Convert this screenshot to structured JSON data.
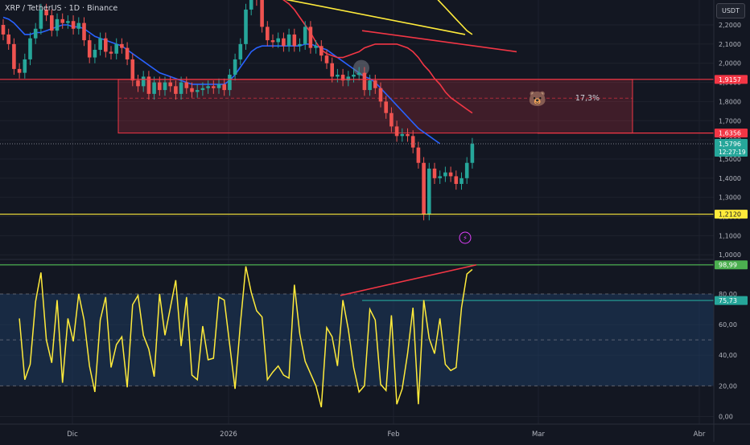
{
  "header": {
    "symbol_title": "XRP / TetherUS · 1D · Binance",
    "currency": "USDT"
  },
  "price_axis": {
    "ticks": [
      "2,2000",
      "2,1000",
      "2,0000",
      "1,9000",
      "1,8000",
      "1,7000",
      "1,6000",
      "1,5000",
      "1,4000",
      "1,3000",
      "1,2000",
      "1,1000",
      "1,0000"
    ],
    "tick_values": [
      2.2,
      2.1,
      2.0,
      1.9,
      1.8,
      1.7,
      1.6,
      1.5,
      1.4,
      1.3,
      1.2,
      1.1,
      1.0
    ]
  },
  "time_axis": {
    "labels": [
      "Dic",
      "2026",
      "Feb",
      "Mar",
      "Abr"
    ]
  },
  "price_labels": {
    "resistance": "1,9157",
    "zone_low": "1,6356",
    "last_price": "1,5796",
    "countdown": "12:27:19",
    "support": "1,2120"
  },
  "colors": {
    "background": "#131722",
    "candle_up": "#26a69a",
    "candle_down": "#ef5350",
    "ma_blue": "#2962ff",
    "ma_red": "#f23645",
    "ma_yellow": "#ffeb3b",
    "zone_fill": "#f2364533",
    "support_line": "#ffeb3b",
    "oscillator_line": "#ffeb3b",
    "oscillator_band": "#1e3a5f"
  },
  "annotations": {
    "zone_percent": "17,3%",
    "bear_emoji": "🐻",
    "flash_icon": "⚡"
  },
  "oscillator": {
    "ticks": [
      "100,00",
      "80,00",
      "60,00",
      "40,00",
      "20,00",
      "0,00"
    ],
    "tick_values": [
      100,
      80,
      60,
      40,
      20,
      0
    ],
    "level_high_label": "98,99",
    "level_low_label": "75,73",
    "level_high": 98.99,
    "level_low": 75.73
  },
  "chart_data": [
    {
      "type": "candlestick",
      "title": "",
      "xlabel": "",
      "ylabel": "",
      "x_ticks": [
        "Dic",
        "2026",
        "Feb",
        "Mar",
        "Abr"
      ],
      "ylim": [
        0.98,
        2.33
      ],
      "horizontal_levels": [
        1.9157,
        1.6356,
        1.212
      ],
      "zone": {
        "high": 1.9157,
        "low": 1.6356
      },
      "close": [
        2.15,
        2.1,
        1.97,
        1.95,
        2.02,
        2.13,
        2.18,
        2.28,
        2.25,
        2.17,
        2.23,
        2.21,
        2.22,
        2.18,
        2.21,
        2.12,
        2.03,
        2.07,
        2.13,
        2.06,
        2.05,
        2.1,
        2.08,
        2.02,
        1.91,
        1.88,
        1.93,
        1.84,
        1.9,
        1.86,
        1.9,
        1.88,
        1.84,
        1.9,
        1.87,
        1.85,
        1.86,
        1.87,
        1.88,
        1.87,
        1.89,
        1.86,
        1.94,
        2.02,
        2.1,
        2.28,
        2.38,
        2.33,
        2.19,
        2.12,
        2.11,
        2.13,
        2.09,
        2.15,
        2.09,
        2.1,
        2.19,
        2.08,
        2.09,
        2.04,
        2.0,
        1.93,
        1.94,
        1.91,
        1.93,
        1.94,
        1.95,
        1.86,
        1.91,
        1.87,
        1.8,
        1.74,
        1.67,
        1.62,
        1.63,
        1.62,
        1.56,
        1.48,
        1.21,
        1.45,
        1.4,
        1.41,
        1.43,
        1.41,
        1.37,
        1.4,
        1.48,
        1.58
      ],
      "series": [
        {
          "name": "",
          "values": [
            2.24,
            2.23,
            2.21,
            2.18,
            2.15,
            2.15,
            2.16,
            2.16,
            2.17,
            2.18,
            2.19,
            2.2,
            2.2,
            2.19,
            2.19,
            2.18,
            2.16,
            2.14,
            2.13,
            2.12,
            2.11,
            2.1,
            2.09,
            2.07,
            2.05,
            2.03,
            2.01,
            1.99,
            1.97,
            1.95,
            1.94,
            1.93,
            1.92,
            1.91,
            1.9,
            1.89,
            1.89,
            1.89,
            1.89,
            1.89,
            1.89,
            1.89,
            1.91,
            1.94,
            1.98,
            2.02,
            2.06,
            2.08,
            2.09,
            2.09,
            2.09,
            2.09,
            2.09,
            2.09,
            2.09,
            2.09,
            2.1,
            2.1,
            2.09,
            2.08,
            2.07,
            2.05,
            2.03,
            2.01,
            1.99,
            1.97,
            1.95,
            1.93,
            1.92,
            1.9,
            1.87,
            1.84,
            1.81,
            1.78,
            1.75,
            1.72,
            1.69,
            1.66,
            1.64,
            1.62,
            1.6,
            1.58
          ]
        },
        {
          "name": "",
          "values": [
            2.35,
            2.33,
            2.31,
            2.28,
            2.24,
            2.2,
            2.16,
            2.11,
            2.07,
            2.05,
            2.04,
            2.03,
            2.03,
            2.04,
            2.05,
            2.06,
            2.08,
            2.09,
            2.1,
            2.1,
            2.1,
            2.1,
            2.1,
            2.09,
            2.08,
            2.06,
            2.03,
            1.99,
            1.96,
            1.92,
            1.89,
            1.85,
            1.82,
            1.8,
            1.78,
            1.76,
            1.74
          ]
        },
        {
          "name": "",
          "values": [
            2.38,
            2.35,
            2.32,
            2.29,
            2.26,
            2.23,
            2.2,
            2.17,
            2.15
          ]
        }
      ]
    },
    {
      "type": "line",
      "title": "",
      "ylim": [
        -5,
        102
      ],
      "horizontal_levels": [
        98.99,
        75.73
      ],
      "series": [
        {
          "name": "",
          "values": [
            64,
            24,
            34,
            75,
            94,
            50,
            35,
            76,
            22,
            64,
            49,
            80,
            63,
            33,
            16,
            63,
            78,
            32,
            47,
            52,
            19,
            73,
            79,
            53,
            44,
            26,
            80,
            53,
            71,
            89,
            46,
            78,
            27,
            24,
            59,
            37,
            38,
            78,
            76,
            47,
            18,
            61,
            98,
            81,
            69,
            65,
            24,
            29,
            33,
            27,
            25,
            86,
            54,
            36,
            28,
            20,
            6,
            58,
            52,
            33,
            76,
            57,
            32,
            16,
            20,
            70,
            63,
            21,
            17,
            66,
            8,
            18,
            41,
            71,
            8,
            76,
            51,
            41,
            64,
            34,
            30,
            32,
            71,
            93,
            96
          ]
        },
        {
          "name": "",
          "values": [
            79,
            98.99
          ]
        }
      ]
    }
  ]
}
